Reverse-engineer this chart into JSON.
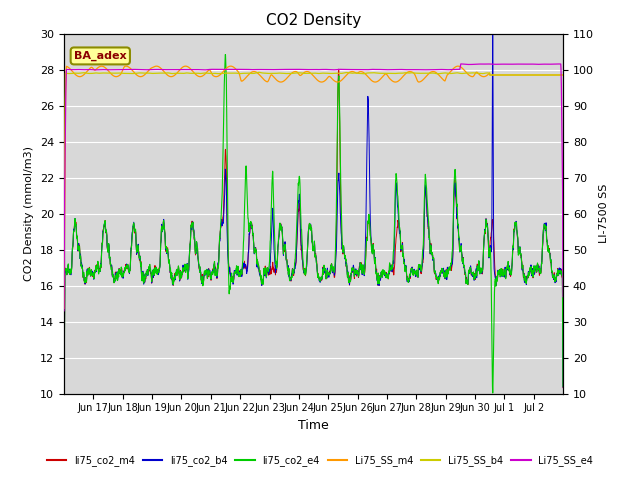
{
  "title": "CO2 Density",
  "ylabel_left": "CO2 Density (mmol/m3)",
  "ylabel_right": "LI-7500 SS",
  "xlabel": "Time",
  "ylim_left": [
    10,
    30
  ],
  "ylim_right": [
    10,
    110
  ],
  "annotation_text": "BA_adex",
  "bg_color": "#d8d8d8",
  "grid_color": "#ffffff",
  "legend_entries": [
    "li75_co2_m4",
    "li75_co2_b4",
    "li75_co2_e4",
    "Li75_SS_m4",
    "Li75_SS_b4",
    "Li75_SS_e4"
  ],
  "legend_colors": [
    "#cc0000",
    "#0000cc",
    "#00cc00",
    "#ff9900",
    "#cccc00",
    "#cc00cc"
  ],
  "xtick_labels": [
    "Jun 17",
    "Jun 18",
    "Jun 19",
    "Jun 20",
    "Jun 21",
    "Jun 22",
    "Jun 23",
    "Jun 24",
    "Jun 25",
    "Jun 26",
    "Jun 27",
    "Jun 28",
    "Jun 29",
    "Jun 30",
    "Jul 1",
    "Jul 2"
  ],
  "yticks_left": [
    10,
    12,
    14,
    16,
    18,
    20,
    22,
    24,
    26,
    28,
    30
  ],
  "yticks_right": [
    10,
    20,
    30,
    40,
    50,
    60,
    70,
    80,
    90,
    100,
    110
  ]
}
